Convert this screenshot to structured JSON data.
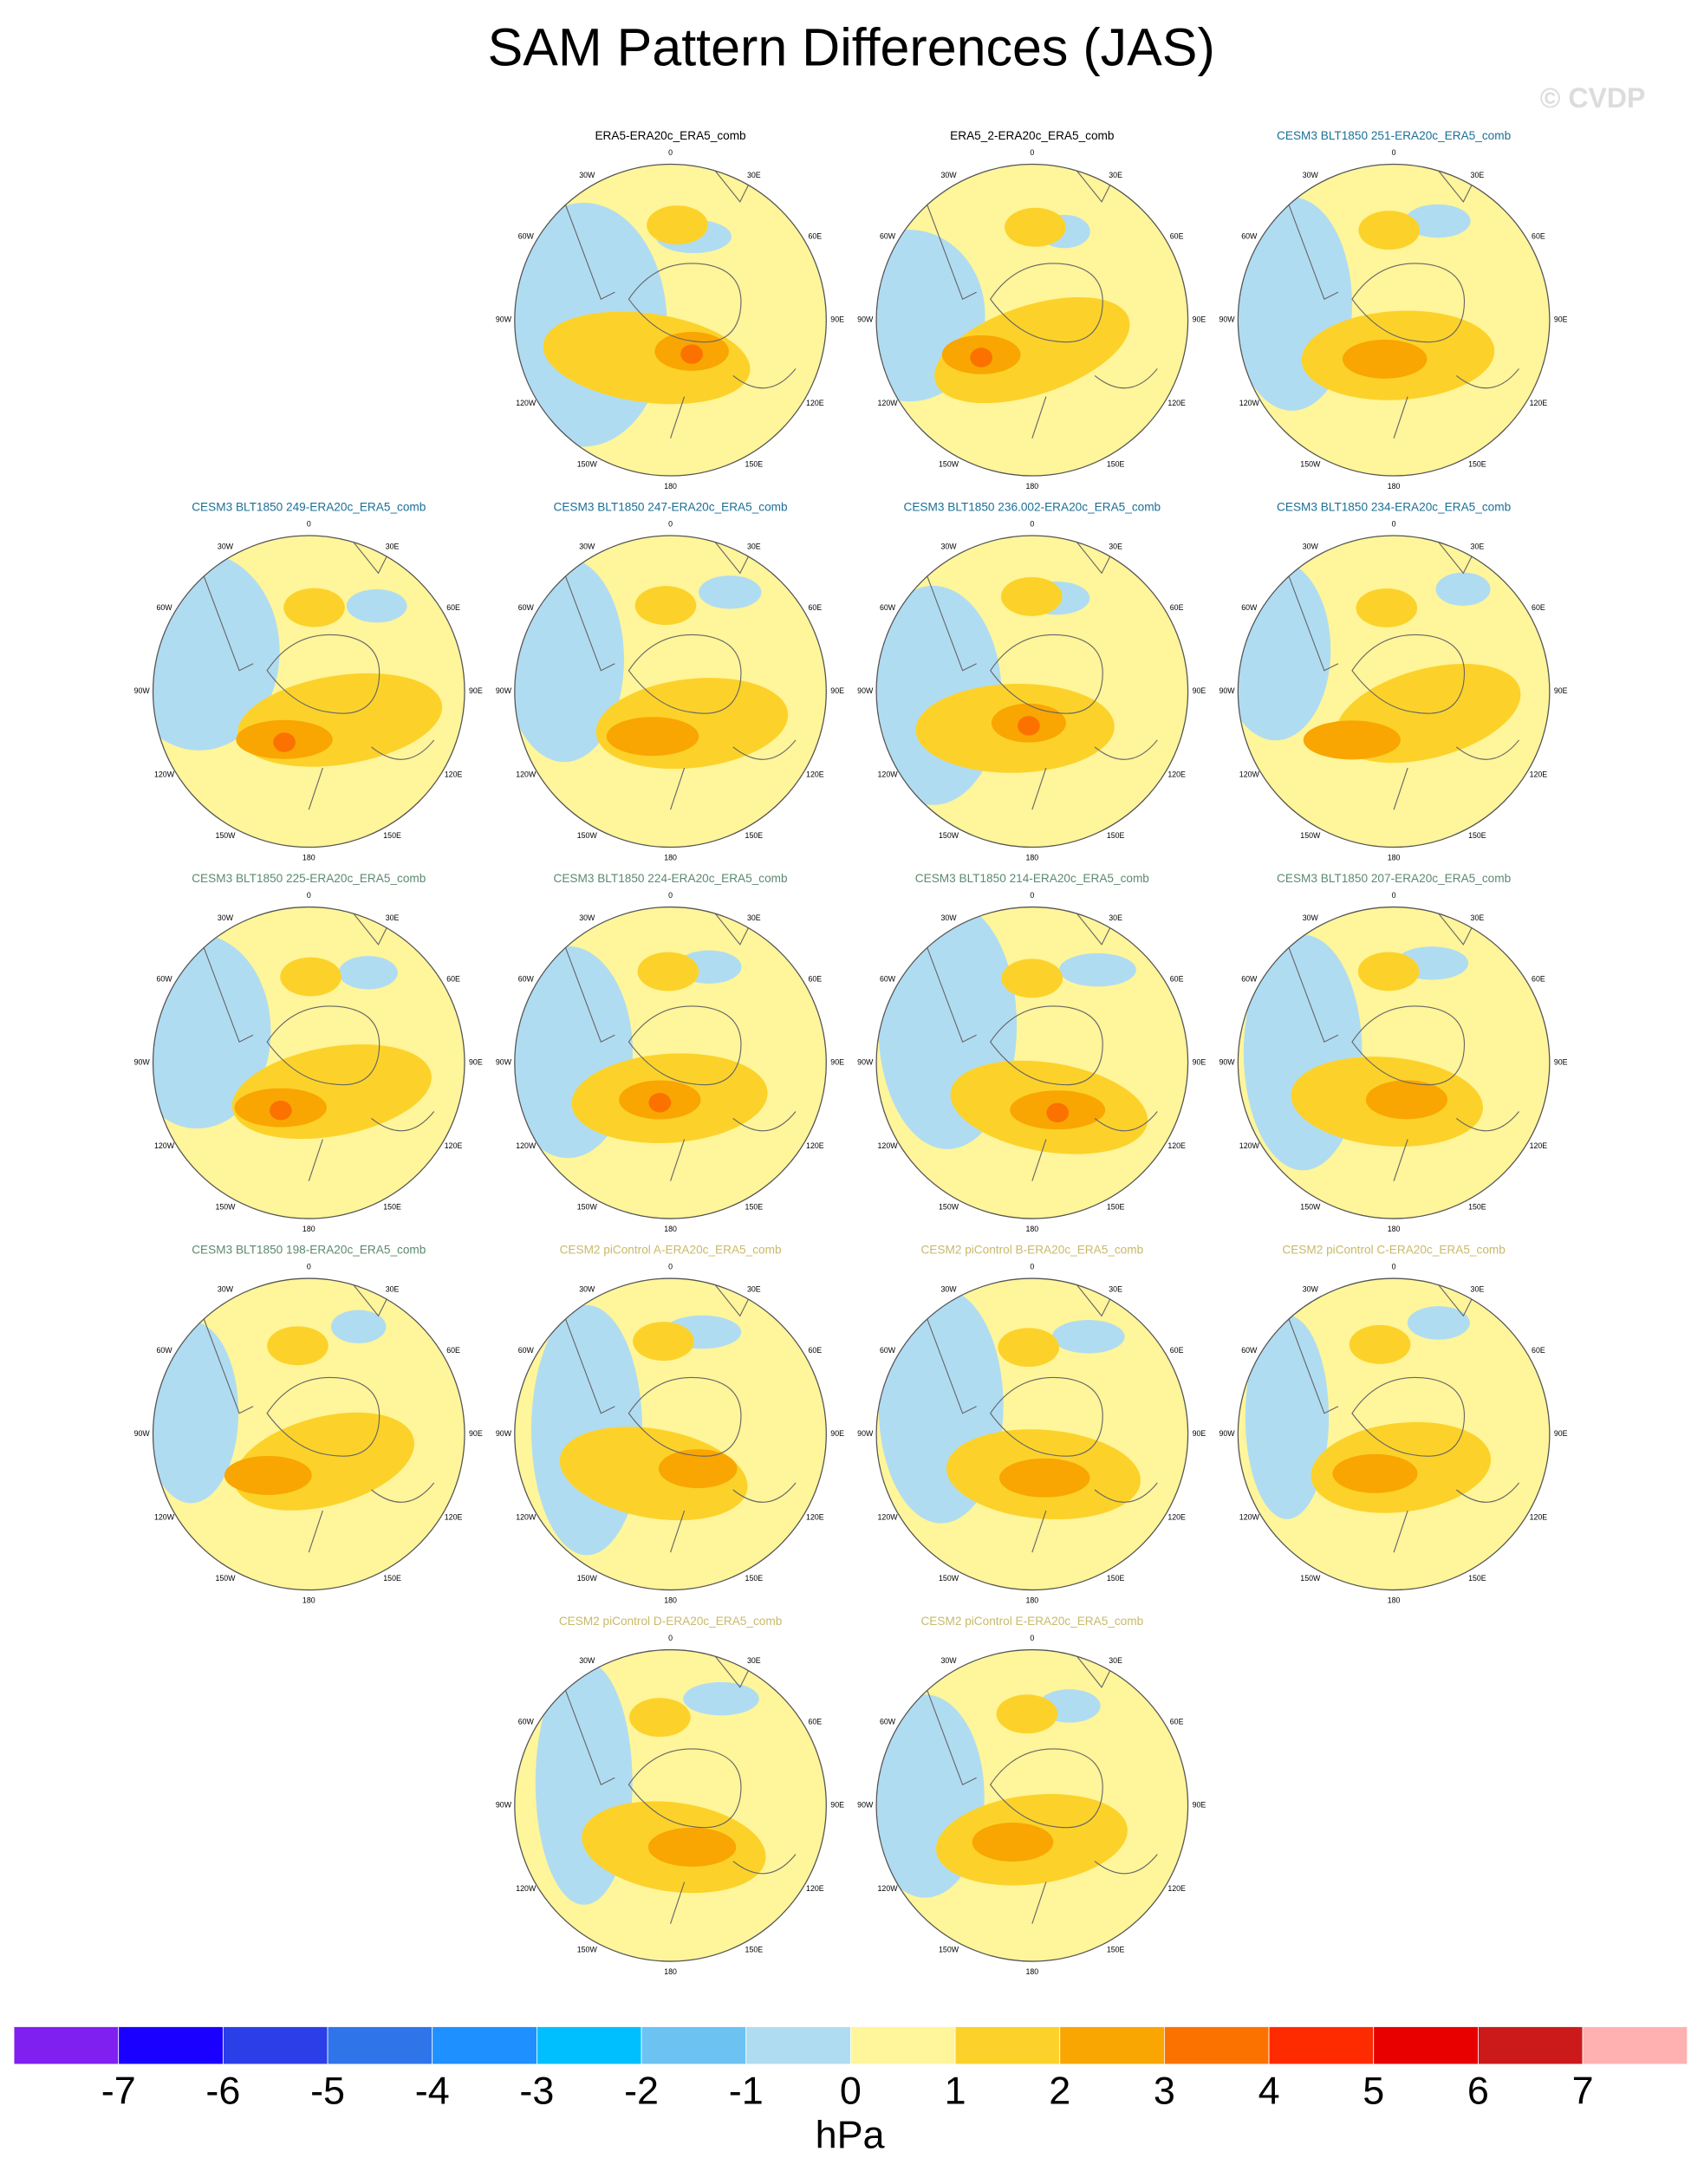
{
  "title": "SAM Pattern Differences (JAS)",
  "watermark": "© CVDP",
  "panels": [
    {
      "title": "ERA5-ERA20c_ERA5_comb",
      "color": "#000000"
    },
    {
      "title": "ERA5_2-ERA20c_ERA5_comb",
      "color": "#000000"
    },
    {
      "title": "CESM3 BLT1850 251-ERA20c_ERA5_comb",
      "color": "#1b6f96"
    },
    {
      "title": "CESM3 BLT1850 249-ERA20c_ERA5_comb",
      "color": "#1b6f96"
    },
    {
      "title": "CESM3 BLT1850 247-ERA20c_ERA5_comb",
      "color": "#1b6f96"
    },
    {
      "title": "CESM3 BLT1850 236.002-ERA20c_ERA5_comb",
      "color": "#1b6f96"
    },
    {
      "title": "CESM3 BLT1850 234-ERA20c_ERA5_comb",
      "color": "#1b6f96"
    },
    {
      "title": "CESM3 BLT1850 225-ERA20c_ERA5_comb",
      "color": "#5b8a6e"
    },
    {
      "title": "CESM3 BLT1850 224-ERA20c_ERA5_comb",
      "color": "#5b8a6e"
    },
    {
      "title": "CESM3 BLT1850 214-ERA20c_ERA5_comb",
      "color": "#5b8a6e"
    },
    {
      "title": "CESM3 BLT1850 207-ERA20c_ERA5_comb",
      "color": "#5b8a6e"
    },
    {
      "title": "CESM3 BLT1850 198-ERA20c_ERA5_comb",
      "color": "#5b8a6e"
    },
    {
      "title": "CESM2 piControl A-ERA20c_ERA5_comb",
      "color": "#c9b96a"
    },
    {
      "title": "CESM2 piControl B-ERA20c_ERA5_comb",
      "color": "#c9b96a"
    },
    {
      "title": "CESM2 piControl C-ERA20c_ERA5_comb",
      "color": "#c9b96a"
    },
    {
      "title": "CESM2 piControl D-ERA20c_ERA5_comb",
      "color": "#c9b96a"
    },
    {
      "title": "CESM2 piControl E-ERA20c_ERA5_comb",
      "color": "#c9b96a"
    }
  ],
  "longitude_labels": [
    "0",
    "30E",
    "60E",
    "90E",
    "120E",
    "150E",
    "180",
    "150W",
    "120W",
    "90W",
    "60W",
    "30W"
  ],
  "colorbar": {
    "levels": [
      -7,
      -6,
      -5,
      -4,
      -3,
      -2,
      -1,
      0,
      1,
      2,
      3,
      4,
      5,
      6,
      7
    ],
    "colors": [
      "#7f1ff0",
      "#1a00ff",
      "#2b3ee8",
      "#3074ea",
      "#1e90ff",
      "#00bfff",
      "#6cc3f2",
      "#b0dcf2",
      "#fff59a",
      "#fcd22a",
      "#f9a602",
      "#fb7200",
      "#ff2b00",
      "#e80000",
      "#cc1a1a",
      "#ffb0b0"
    ],
    "unit": "hPa"
  }
}
